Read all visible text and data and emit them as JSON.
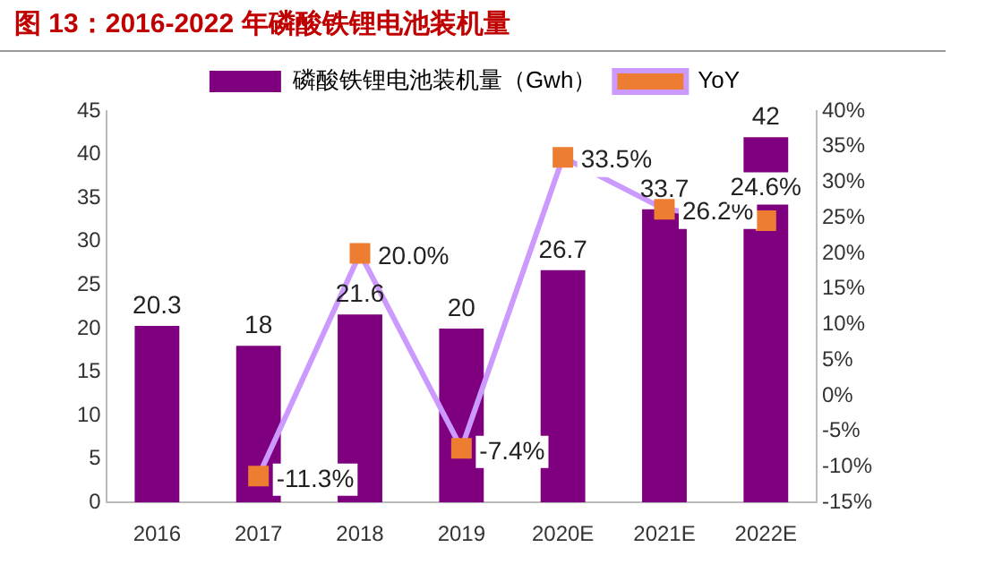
{
  "chart_data": {
    "type": "bar",
    "title": "图 13：2016-2022 年磷酸铁锂电池装机量",
    "categories": [
      "2016",
      "2017",
      "2018",
      "2019",
      "2020E",
      "2021E",
      "2022E"
    ],
    "series": [
      {
        "name": "磷酸铁锂电池装机量（Gwh）",
        "color": "#7f007f",
        "values": [
          20.3,
          18,
          21.6,
          20,
          26.7,
          33.7,
          42
        ],
        "value_labels": [
          "20.3",
          "18",
          "21.6",
          "20",
          "26.7",
          "33.7",
          "42"
        ]
      },
      {
        "name": "YoY",
        "type": "line",
        "axis": "y2",
        "color": "#cc99ff",
        "colors": [
          null,
          "#ed7d31",
          "#ed7d31",
          "#ed7d31",
          "#ed7d31",
          "#ed7d31",
          "#ed7d31"
        ],
        "values": [
          null,
          -11.3,
          20.0,
          -7.4,
          33.5,
          26.2,
          24.6
        ],
        "value_labels": [
          null,
          "-11.3%",
          "20.0%",
          "-7.4%",
          "33.5%",
          "26.2%",
          "24.6%"
        ]
      }
    ],
    "ylim": [
      0,
      45
    ],
    "yticks": [
      0,
      5,
      10,
      15,
      20,
      25,
      30,
      35,
      40,
      45
    ],
    "y2lim": [
      -15,
      40
    ],
    "y2ticks": [
      {
        "value": -15,
        "label": "-15%"
      },
      {
        "value": -10,
        "label": "-10%"
      },
      {
        "value": -5,
        "label": "-5%"
      },
      {
        "value": 0,
        "label": "0%"
      },
      {
        "value": 5,
        "label": "5%"
      },
      {
        "value": 10,
        "label": "10%"
      },
      {
        "value": 15,
        "label": "15%"
      },
      {
        "value": 20,
        "label": "20%"
      },
      {
        "value": 25,
        "label": "25%"
      },
      {
        "value": 30,
        "label": "30%"
      },
      {
        "value": 35,
        "label": "35%"
      },
      {
        "value": 40,
        "label": "40%"
      }
    ],
    "legend": "top",
    "marker": "square",
    "grid": false
  }
}
